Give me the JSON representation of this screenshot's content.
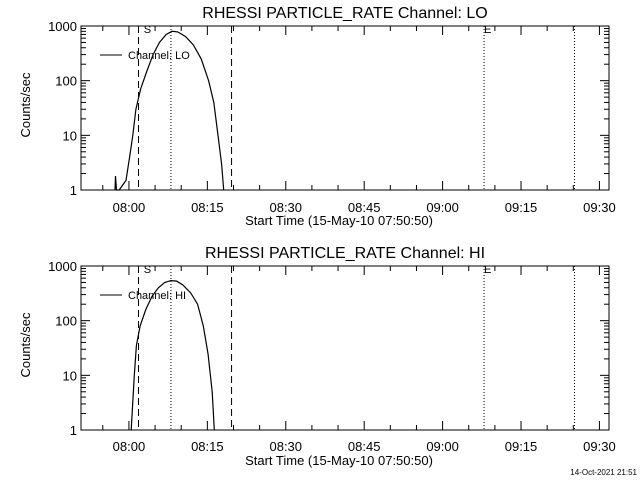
{
  "footer_timestamp": "14-Oct-2021 21:51",
  "chart_data": [
    {
      "type": "line",
      "title": "RHESSI PARTICLE_RATE Channel: LO",
      "xlabel": "Start Time (15-May-10 07:50:50)",
      "ylabel": "Counts/sec",
      "yscale": "log",
      "ylim": [
        1,
        1000
      ],
      "xlim_minutes_after_start": [
        0,
        101
      ],
      "x_ticks": [
        {
          "label": "08:00",
          "t": 9.17
        },
        {
          "label": "08:15",
          "t": 24.17
        },
        {
          "label": "08:30",
          "t": 39.17
        },
        {
          "label": "08:45",
          "t": 54.17
        },
        {
          "label": "09:00",
          "t": 69.17
        },
        {
          "label": "09:15",
          "t": 84.17
        },
        {
          "label": "09:30",
          "t": 99.17
        }
      ],
      "y_ticks": [
        {
          "label": "1",
          "v": 1
        },
        {
          "label": "10",
          "v": 10
        },
        {
          "label": "100",
          "v": 100
        },
        {
          "label": "1000",
          "v": 1000
        }
      ],
      "legend": {
        "label": "Channel: LO",
        "position": "top-left"
      },
      "start_marker": {
        "label": "S",
        "t": 12.7
      },
      "end_marker": {
        "label": "E",
        "t": 77.8
      },
      "dashed_lines_t": [
        11.0,
        28.8
      ],
      "dotted_lines_t": [
        17.2,
        77.1,
        94.4
      ],
      "series": [
        {
          "name": "Channel: LO",
          "points": [
            {
              "t": 6.5,
              "v": 1
            },
            {
              "t": 6.6,
              "v": 1.8
            },
            {
              "t": 6.8,
              "v": 1
            },
            {
              "t": 7.3,
              "v": 1
            },
            {
              "t": 8.6,
              "v": 1.5
            },
            {
              "t": 9.3,
              "v": 4
            },
            {
              "t": 9.9,
              "v": 10
            },
            {
              "t": 10.5,
              "v": 30
            },
            {
              "t": 11.4,
              "v": 70
            },
            {
              "t": 12.6,
              "v": 150
            },
            {
              "t": 13.8,
              "v": 300
            },
            {
              "t": 15.0,
              "v": 500
            },
            {
              "t": 16.3,
              "v": 700
            },
            {
              "t": 17.4,
              "v": 800
            },
            {
              "t": 18.5,
              "v": 780
            },
            {
              "t": 20.0,
              "v": 640
            },
            {
              "t": 21.5,
              "v": 450
            },
            {
              "t": 23.0,
              "v": 250
            },
            {
              "t": 24.4,
              "v": 100
            },
            {
              "t": 25.4,
              "v": 40
            },
            {
              "t": 26.2,
              "v": 10
            },
            {
              "t": 26.9,
              "v": 3
            },
            {
              "t": 27.3,
              "v": 1
            }
          ]
        }
      ]
    },
    {
      "type": "line",
      "title": "RHESSI PARTICLE_RATE Channel: HI",
      "xlabel": "Start Time (15-May-10 07:50:50)",
      "ylabel": "Counts/sec",
      "yscale": "log",
      "ylim": [
        1,
        1000
      ],
      "xlim_minutes_after_start": [
        0,
        101
      ],
      "x_ticks": [
        {
          "label": "08:00",
          "t": 9.17
        },
        {
          "label": "08:15",
          "t": 24.17
        },
        {
          "label": "08:30",
          "t": 39.17
        },
        {
          "label": "08:45",
          "t": 54.17
        },
        {
          "label": "09:00",
          "t": 69.17
        },
        {
          "label": "09:15",
          "t": 84.17
        },
        {
          "label": "09:30",
          "t": 99.17
        }
      ],
      "y_ticks": [
        {
          "label": "1",
          "v": 1
        },
        {
          "label": "10",
          "v": 10
        },
        {
          "label": "100",
          "v": 100
        },
        {
          "label": "1000",
          "v": 1000
        }
      ],
      "legend": {
        "label": "Channel: HI",
        "position": "top-left"
      },
      "start_marker": {
        "label": "S",
        "t": 12.7
      },
      "end_marker": {
        "label": "E",
        "t": 77.8
      },
      "dashed_lines_t": [
        11.0,
        28.8
      ],
      "dotted_lines_t": [
        17.2,
        77.1,
        94.4
      ],
      "series": [
        {
          "name": "Channel: HI",
          "points": [
            {
              "t": 9.6,
              "v": 1
            },
            {
              "t": 10.2,
              "v": 10
            },
            {
              "t": 10.6,
              "v": 35
            },
            {
              "t": 11.3,
              "v": 80
            },
            {
              "t": 12.4,
              "v": 160
            },
            {
              "t": 13.6,
              "v": 280
            },
            {
              "t": 14.8,
              "v": 400
            },
            {
              "t": 16.0,
              "v": 500
            },
            {
              "t": 17.2,
              "v": 540
            },
            {
              "t": 18.3,
              "v": 530
            },
            {
              "t": 19.5,
              "v": 450
            },
            {
              "t": 21.0,
              "v": 320
            },
            {
              "t": 22.3,
              "v": 200
            },
            {
              "t": 23.4,
              "v": 80
            },
            {
              "t": 24.3,
              "v": 25
            },
            {
              "t": 25.1,
              "v": 5
            },
            {
              "t": 25.5,
              "v": 1
            }
          ]
        }
      ]
    }
  ]
}
